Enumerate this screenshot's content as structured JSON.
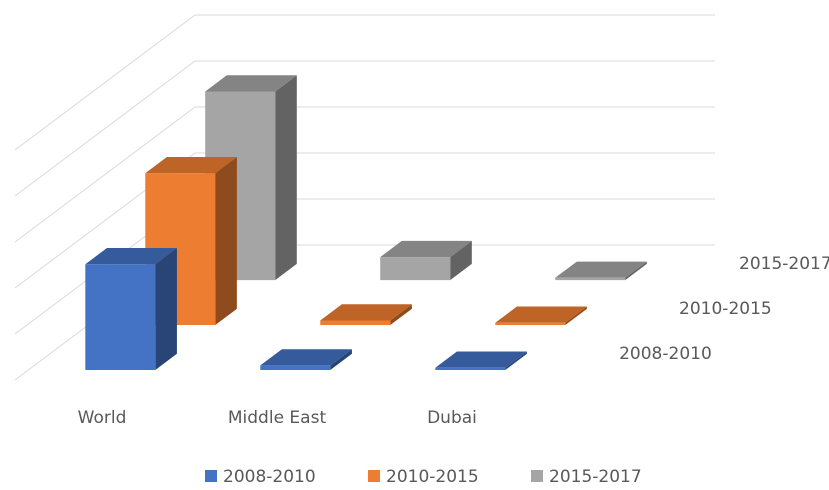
{
  "chart_data": {
    "type": "bar3d",
    "categories": [
      "World",
      "Middle East",
      "Dubai"
    ],
    "series": [
      {
        "name": "2008-2010",
        "color": "#4472c4",
        "values": [
          2.3,
          0.1,
          0.05
        ]
      },
      {
        "name": "2010-2015",
        "color": "#ed7d31",
        "values": [
          3.3,
          0.1,
          0.05
        ]
      },
      {
        "name": "2015-2017",
        "color": "#a5a5a5",
        "values": [
          4.1,
          0.5,
          0.05
        ]
      }
    ],
    "ylim": [
      0,
      5
    ],
    "yticks": [
      0,
      1,
      2,
      3,
      4,
      5
    ],
    "grid": true,
    "legend": "bottom"
  }
}
